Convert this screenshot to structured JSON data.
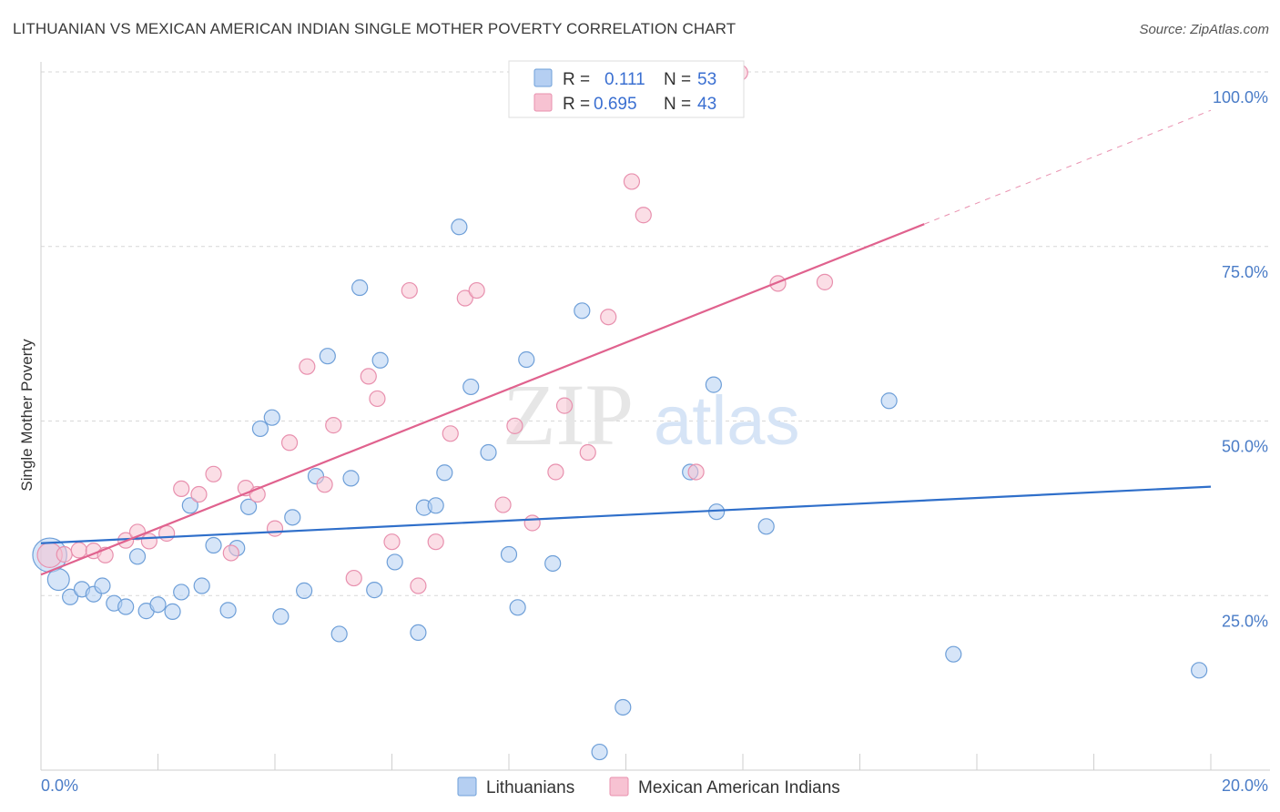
{
  "title": "LITHUANIAN VS MEXICAN AMERICAN INDIAN SINGLE MOTHER POVERTY CORRELATION CHART",
  "source": "Source: ZipAtlas.com",
  "watermark": {
    "part1": "ZIP",
    "part2": "atlas"
  },
  "legend": {
    "rows": [
      {
        "r_label": "R =",
        "r_value": "0.111",
        "n_label": "N =",
        "n_value": "53"
      },
      {
        "r_label": "R =",
        "r_value": "0.695",
        "n_label": "N =",
        "n_value": "43"
      }
    ]
  },
  "colors": {
    "blue_fill": "#b5cff2",
    "blue_stroke": "#6e9fd8",
    "blue_line": "#2f6fca",
    "pink_fill": "#f7c2d2",
    "pink_stroke": "#e890ae",
    "pink_line": "#e0628e",
    "grid": "#d7d7d7",
    "tick_label": "#4a7cc7"
  },
  "chart_data": {
    "type": "scatter",
    "title": "LITHUANIAN VS MEXICAN AMERICAN INDIAN SINGLE MOTHER POVERTY CORRELATION CHART",
    "xlabel": "",
    "ylabel": "Single Mother Poverty",
    "x_ticks": [
      "0.0%",
      "20.0%"
    ],
    "y_ticks": [
      "25.0%",
      "50.0%",
      "75.0%",
      "100.0%"
    ],
    "xlim": [
      0,
      20
    ],
    "ylim": [
      0,
      100
    ],
    "grid": true,
    "legend_placement": "top-center",
    "series": [
      {
        "name": "Lithuanians",
        "color": "#b5cff2",
        "trend": {
          "x": [
            0,
            20
          ],
          "y": [
            32.5,
            40.6
          ]
        },
        "points": [
          {
            "x": 0.15,
            "y": 30.8,
            "s": 2.2
          },
          {
            "x": 0.3,
            "y": 27.3,
            "s": 1.4
          },
          {
            "x": 0.5,
            "y": 24.8,
            "s": 1
          },
          {
            "x": 0.7,
            "y": 25.9,
            "s": 1
          },
          {
            "x": 0.9,
            "y": 25.2,
            "s": 1
          },
          {
            "x": 1.05,
            "y": 26.4,
            "s": 1
          },
          {
            "x": 1.25,
            "y": 23.9,
            "s": 1
          },
          {
            "x": 1.45,
            "y": 23.4,
            "s": 1
          },
          {
            "x": 1.65,
            "y": 30.6,
            "s": 1
          },
          {
            "x": 1.8,
            "y": 22.8,
            "s": 1
          },
          {
            "x": 2.0,
            "y": 23.7,
            "s": 1
          },
          {
            "x": 2.25,
            "y": 22.7,
            "s": 1
          },
          {
            "x": 2.4,
            "y": 25.5,
            "s": 1
          },
          {
            "x": 2.55,
            "y": 37.9,
            "s": 1
          },
          {
            "x": 2.75,
            "y": 26.4,
            "s": 1
          },
          {
            "x": 2.95,
            "y": 32.2,
            "s": 1
          },
          {
            "x": 3.2,
            "y": 22.9,
            "s": 1
          },
          {
            "x": 3.35,
            "y": 31.8,
            "s": 1
          },
          {
            "x": 3.55,
            "y": 37.7,
            "s": 1
          },
          {
            "x": 3.75,
            "y": 48.9,
            "s": 1
          },
          {
            "x": 3.95,
            "y": 50.5,
            "s": 1
          },
          {
            "x": 4.1,
            "y": 22.0,
            "s": 1
          },
          {
            "x": 4.3,
            "y": 36.2,
            "s": 1
          },
          {
            "x": 4.5,
            "y": 25.7,
            "s": 1
          },
          {
            "x": 4.7,
            "y": 42.1,
            "s": 1
          },
          {
            "x": 4.9,
            "y": 59.3,
            "s": 1
          },
          {
            "x": 5.1,
            "y": 19.5,
            "s": 1
          },
          {
            "x": 5.3,
            "y": 41.8,
            "s": 1
          },
          {
            "x": 5.45,
            "y": 69.1,
            "s": 1
          },
          {
            "x": 5.7,
            "y": 25.8,
            "s": 1
          },
          {
            "x": 5.8,
            "y": 58.7,
            "s": 1
          },
          {
            "x": 6.05,
            "y": 29.8,
            "s": 1
          },
          {
            "x": 6.45,
            "y": 19.7,
            "s": 1
          },
          {
            "x": 6.55,
            "y": 37.6,
            "s": 1
          },
          {
            "x": 6.75,
            "y": 37.9,
            "s": 1
          },
          {
            "x": 6.9,
            "y": 42.6,
            "s": 1
          },
          {
            "x": 7.15,
            "y": 77.8,
            "s": 1
          },
          {
            "x": 7.35,
            "y": 54.9,
            "s": 1
          },
          {
            "x": 7.65,
            "y": 45.5,
            "s": 1
          },
          {
            "x": 8.0,
            "y": 30.9,
            "s": 1
          },
          {
            "x": 8.15,
            "y": 23.3,
            "s": 1
          },
          {
            "x": 8.3,
            "y": 58.8,
            "s": 1
          },
          {
            "x": 8.75,
            "y": 29.6,
            "s": 1
          },
          {
            "x": 9.25,
            "y": 65.8,
            "s": 1
          },
          {
            "x": 9.55,
            "y": 2.6,
            "s": 1
          },
          {
            "x": 9.95,
            "y": 9.0,
            "s": 1
          },
          {
            "x": 11.1,
            "y": 42.7,
            "s": 1
          },
          {
            "x": 11.5,
            "y": 55.2,
            "s": 1
          },
          {
            "x": 11.55,
            "y": 37.0,
            "s": 1
          },
          {
            "x": 12.4,
            "y": 34.9,
            "s": 1
          },
          {
            "x": 14.5,
            "y": 52.9,
            "s": 1
          },
          {
            "x": 15.6,
            "y": 16.6,
            "s": 1
          },
          {
            "x": 19.8,
            "y": 14.3,
            "s": 1
          }
        ]
      },
      {
        "name": "Mexican American Indians",
        "color": "#f7c2d2",
        "trend": {
          "x": [
            0,
            15.1
          ],
          "y": [
            28.0,
            78.2
          ],
          "dashed_to": {
            "x": 20,
            "y": 94.5
          }
        },
        "points": [
          {
            "x": 0.15,
            "y": 30.8,
            "s": 1.6
          },
          {
            "x": 0.4,
            "y": 30.9,
            "s": 1
          },
          {
            "x": 0.65,
            "y": 31.5,
            "s": 1
          },
          {
            "x": 0.9,
            "y": 31.4,
            "s": 1
          },
          {
            "x": 1.1,
            "y": 30.8,
            "s": 1
          },
          {
            "x": 1.45,
            "y": 32.9,
            "s": 1
          },
          {
            "x": 1.65,
            "y": 34.1,
            "s": 1
          },
          {
            "x": 1.85,
            "y": 32.8,
            "s": 1
          },
          {
            "x": 2.15,
            "y": 33.9,
            "s": 1
          },
          {
            "x": 2.4,
            "y": 40.3,
            "s": 1
          },
          {
            "x": 2.7,
            "y": 39.5,
            "s": 1
          },
          {
            "x": 2.95,
            "y": 42.4,
            "s": 1
          },
          {
            "x": 3.25,
            "y": 31.1,
            "s": 1
          },
          {
            "x": 3.5,
            "y": 40.4,
            "s": 1
          },
          {
            "x": 3.7,
            "y": 39.5,
            "s": 1
          },
          {
            "x": 4.0,
            "y": 34.6,
            "s": 1
          },
          {
            "x": 4.25,
            "y": 46.9,
            "s": 1
          },
          {
            "x": 4.55,
            "y": 57.8,
            "s": 1
          },
          {
            "x": 4.85,
            "y": 40.9,
            "s": 1
          },
          {
            "x": 5.0,
            "y": 49.4,
            "s": 1
          },
          {
            "x": 5.35,
            "y": 27.5,
            "s": 1
          },
          {
            "x": 5.6,
            "y": 56.4,
            "s": 1
          },
          {
            "x": 5.75,
            "y": 53.2,
            "s": 1
          },
          {
            "x": 6.0,
            "y": 32.7,
            "s": 1
          },
          {
            "x": 6.3,
            "y": 68.7,
            "s": 1
          },
          {
            "x": 6.45,
            "y": 26.4,
            "s": 1
          },
          {
            "x": 6.75,
            "y": 32.7,
            "s": 1
          },
          {
            "x": 7.0,
            "y": 48.2,
            "s": 1
          },
          {
            "x": 7.25,
            "y": 67.6,
            "s": 1
          },
          {
            "x": 7.45,
            "y": 68.7,
            "s": 1
          },
          {
            "x": 7.9,
            "y": 38.0,
            "s": 1
          },
          {
            "x": 8.1,
            "y": 49.3,
            "s": 1
          },
          {
            "x": 8.4,
            "y": 35.4,
            "s": 1
          },
          {
            "x": 8.8,
            "y": 42.7,
            "s": 1
          },
          {
            "x": 8.95,
            "y": 52.2,
            "s": 1
          },
          {
            "x": 9.35,
            "y": 45.5,
            "s": 1
          },
          {
            "x": 9.7,
            "y": 64.9,
            "s": 1
          },
          {
            "x": 10.1,
            "y": 84.3,
            "s": 1
          },
          {
            "x": 10.3,
            "y": 79.5,
            "s": 1
          },
          {
            "x": 11.2,
            "y": 42.7,
            "s": 1
          },
          {
            "x": 11.95,
            "y": 99.9,
            "s": 1
          },
          {
            "x": 12.6,
            "y": 69.7,
            "s": 1
          },
          {
            "x": 13.4,
            "y": 69.9,
            "s": 1
          }
        ]
      }
    ]
  }
}
